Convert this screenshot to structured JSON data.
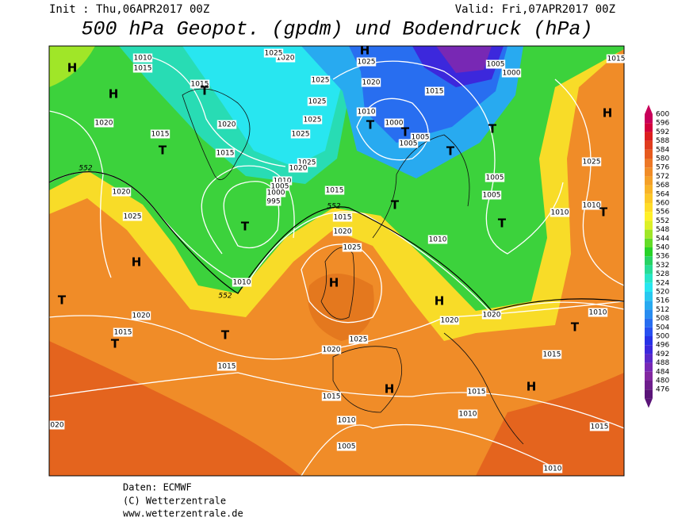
{
  "header": {
    "init": "Init : Thu,06APR2017 00Z",
    "valid": "Valid: Fri,07APR2017 00Z",
    "title": "500 hPa Geopot. (gpdm) und Bodendruck (hPa)"
  },
  "map": {
    "isobar_labels": [
      "1010",
      "1015",
      "1020",
      "1025",
      "1025",
      "1005",
      "1000",
      "1015",
      "1020",
      "1025",
      "1025",
      "1015",
      "1010",
      "1000",
      "1020",
      "1015",
      "1020",
      "1025",
      "1025",
      "1005",
      "1005",
      "1015",
      "1025",
      "1020",
      "1010",
      "1005",
      "1000",
      "995",
      "1015",
      "1025",
      "1005",
      "1005",
      "1020",
      "1025",
      "1015",
      "1020",
      "1010",
      "1010",
      "1010",
      "1025",
      "1010",
      "1020",
      "1020",
      "1020",
      "1010",
      "1015",
      "1025",
      "1020",
      "1015",
      "1015",
      "1015",
      "1015",
      "1010",
      "1010",
      "1015",
      "1005",
      "1010",
      "020",
      "1015"
    ],
    "contour_labels": [
      "552",
      "552",
      "552"
    ],
    "centers": [
      "H",
      "H",
      "T",
      "T",
      "T",
      "H",
      "T",
      "T",
      "T",
      "H",
      "T",
      "T",
      "T",
      "T",
      "T",
      "T",
      "H",
      "T",
      "H",
      "H",
      "T",
      "H",
      "H"
    ]
  },
  "colorbar": {
    "levels": [
      600,
      596,
      592,
      588,
      584,
      580,
      576,
      572,
      568,
      564,
      560,
      556,
      552,
      548,
      544,
      540,
      536,
      532,
      528,
      524,
      520,
      516,
      512,
      508,
      504,
      500,
      496,
      492,
      488,
      484,
      480,
      476
    ],
    "colors": [
      "#c8005a",
      "#d2003c",
      "#dc1e1e",
      "#e03c1e",
      "#e65a1e",
      "#ec7828",
      "#f08c28",
      "#f4a028",
      "#f8b428",
      "#fcc828",
      "#ffdc28",
      "#fff028",
      "#dcf028",
      "#a0e628",
      "#64dc28",
      "#28d228",
      "#28d264",
      "#28dc96",
      "#28e6c8",
      "#28e6f0",
      "#28c8f0",
      "#28aaf0",
      "#288cf0",
      "#286ef0",
      "#2850f0",
      "#2832e6",
      "#3c28dc",
      "#5a28c8",
      "#7828b4",
      "#8228a0",
      "#6e1e8c",
      "#5a1478"
    ]
  },
  "footer": {
    "source": "Daten: ECMWF",
    "copyright": "(C) Wetterzentrale",
    "website": "www.wetterzentrale.de"
  }
}
